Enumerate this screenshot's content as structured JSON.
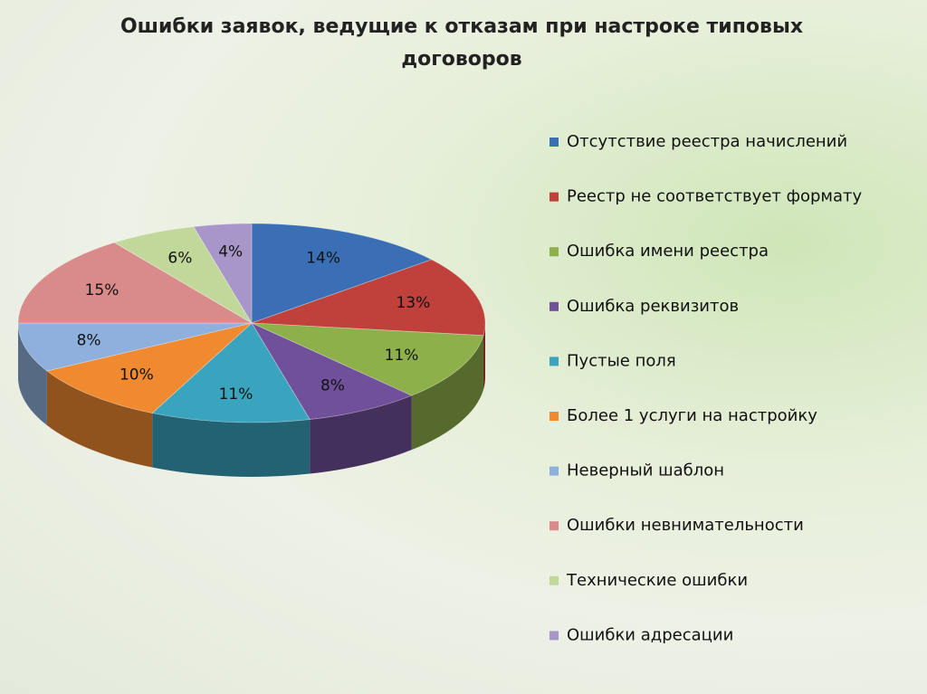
{
  "chart_data": {
    "type": "pie3d",
    "title": "Ошибки заявок, ведущие к отказам при настроке типовых договоров",
    "categories": [
      "Отсутствие реестра начислений",
      "Реестр не соответствует формату",
      "Ошибка имени реестра",
      "Ошибка реквизитов",
      "Пустые поля",
      "Более 1 услуги на настройку",
      "Неверный шаблон",
      "Ошибки невнимательности",
      "Технические ошибки",
      "Ошибки адресации"
    ],
    "values": [
      14,
      13,
      11,
      8,
      11,
      10,
      8,
      15,
      6,
      4
    ],
    "value_labels": [
      "14%",
      "13%",
      "11%",
      "8%",
      "11%",
      "10%",
      "8%",
      "15%",
      "6%",
      "4%"
    ],
    "colors": [
      "#3a6fb5",
      "#c0403c",
      "#8db04a",
      "#70509a",
      "#3aa3be",
      "#f08a30",
      "#8fb0dc",
      "#d98b89",
      "#c2d89a",
      "#a996c9"
    ],
    "legend": "right"
  }
}
